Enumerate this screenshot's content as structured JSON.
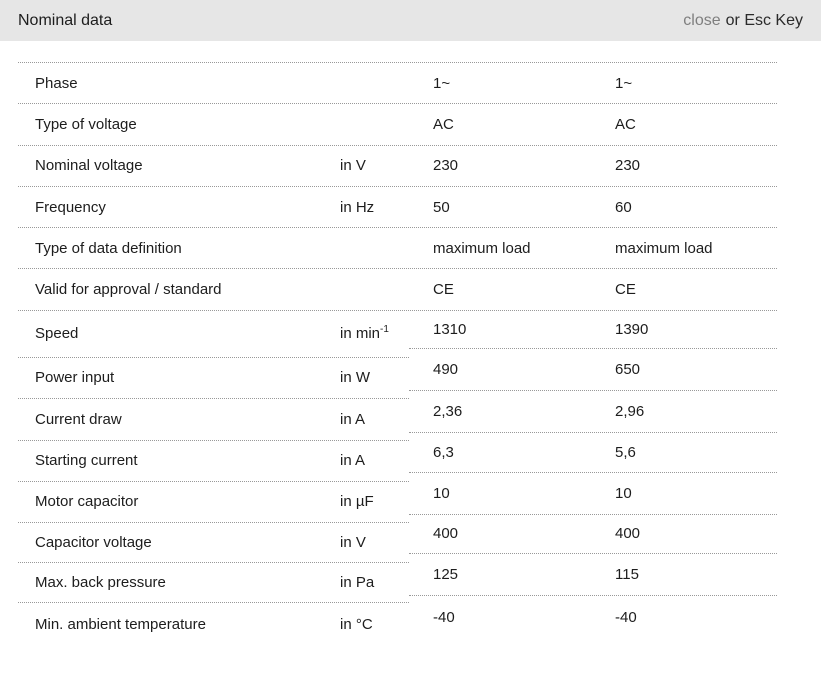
{
  "header": {
    "title": "Nominal data",
    "close": "close",
    "esc": "or Esc Key"
  },
  "colors": {
    "header_bg": "#e6e6e6",
    "text": "#1d1d1d",
    "close_link": "#7f7f7f",
    "divider": "#999999"
  },
  "table": {
    "full_rows": [
      {
        "label": "Phase",
        "unit": "",
        "v1": "1~",
        "v2": "1~"
      },
      {
        "label": "Type of voltage",
        "unit": "",
        "v1": "AC",
        "v2": "AC"
      },
      {
        "label": "Nominal voltage",
        "unit": "in V",
        "v1": "230",
        "v2": "230"
      },
      {
        "label": "Frequency",
        "unit": "in Hz",
        "v1": "50",
        "v2": "60"
      },
      {
        "label": "Type of data definition",
        "unit": "",
        "v1": "maximum load",
        "v2": "maximum load"
      },
      {
        "label": "Valid for approval / standard",
        "unit": "",
        "v1": "CE",
        "v2": "CE"
      }
    ],
    "left_rows": [
      {
        "label": "Speed",
        "unit": "in min",
        "unit_sup": "-1"
      },
      {
        "label": "Power input",
        "unit": "in W"
      },
      {
        "label": "Current draw",
        "unit": "in A"
      },
      {
        "label": "Starting current",
        "unit": "in A"
      },
      {
        "label": "Motor capacitor",
        "unit": "in µF"
      },
      {
        "label": "Capacitor voltage",
        "unit": "in V"
      },
      {
        "label": "Max. back pressure",
        "unit": "in Pa"
      },
      {
        "label": "Min. ambient temperature",
        "unit": "in °C"
      }
    ],
    "right_rows": [
      {
        "v1": "1310",
        "v2": "1390"
      },
      {
        "v1": "490",
        "v2": "650"
      },
      {
        "v1": "2,36",
        "v2": "2,96"
      },
      {
        "v1": "6,3",
        "v2": "5,6"
      },
      {
        "v1": "10",
        "v2": "10"
      },
      {
        "v1": "400",
        "v2": "400"
      },
      {
        "v1": "125",
        "v2": "115"
      },
      {
        "v1": "-40",
        "v2": "-40"
      }
    ]
  }
}
